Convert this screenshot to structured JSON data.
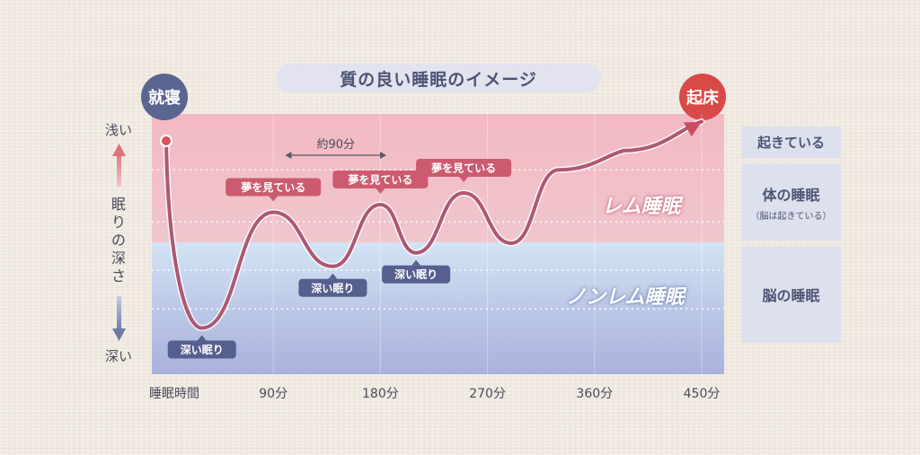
{
  "title": "質の良い睡眠のイメージ",
  "events": {
    "bedtime": "就寝",
    "wake": "起床"
  },
  "y_axis": {
    "top_label": "浅い",
    "title": "眠りの深さ",
    "bottom_label": "深い"
  },
  "x_axis": {
    "label": "睡眠時間"
  },
  "zones": {
    "rem": "レム睡眠",
    "nrem": "ノンレム睡眠"
  },
  "legend_boxes": {
    "awake": "起きている",
    "body_sleep": "体の睡眠",
    "body_sleep_note": "（脳は起きている）",
    "brain_sleep": "脳の睡眠"
  },
  "cycle_annotation": "約90分",
  "colors": {
    "curve": "#ad5874",
    "wake_arrow": "#c94e5f",
    "dream_tag": "#cc5b70",
    "deep_tag": "#56608f",
    "bedtime_circle": "#5a6590",
    "wake_circle": "#d84a47"
  },
  "chart_data": {
    "type": "line",
    "x": [
      0,
      30,
      90,
      140,
      180,
      210,
      250,
      290,
      330,
      385,
      450
    ],
    "y": [
      100,
      3,
      63,
      35,
      67,
      42,
      73,
      47,
      85,
      95,
      110
    ],
    "y_meaning": "sleep depth (0 = deep, 100 = awake/shallow)",
    "xlim": [
      0,
      480
    ],
    "ylim": [
      0,
      115
    ],
    "ticks": [
      {
        "x": 0,
        "label": "睡眠時間"
      },
      {
        "x": 90,
        "label": "90分"
      },
      {
        "x": 180,
        "label": "180分"
      },
      {
        "x": 270,
        "label": "270分"
      },
      {
        "x": 360,
        "label": "360分"
      },
      {
        "x": 450,
        "label": "450分"
      }
    ],
    "rem_nrem_boundary": 58,
    "gridlines": [
      85,
      58,
      33,
      13
    ],
    "annotations": [
      {
        "x": 30,
        "y": 3,
        "text": "深い眠り",
        "kind": "deep"
      },
      {
        "x": 90,
        "y": 63,
        "text": "夢を見ている",
        "kind": "dream"
      },
      {
        "x": 140,
        "y": 35,
        "text": "深い眠り",
        "kind": "deep"
      },
      {
        "x": 180,
        "y": 67,
        "text": "夢を見ている",
        "kind": "dream"
      },
      {
        "x": 210,
        "y": 42,
        "text": "深い眠り",
        "kind": "deep"
      },
      {
        "x": 250,
        "y": 73,
        "text": "夢を見ている",
        "kind": "dream"
      }
    ],
    "cycle_span": [
      100,
      185
    ]
  }
}
